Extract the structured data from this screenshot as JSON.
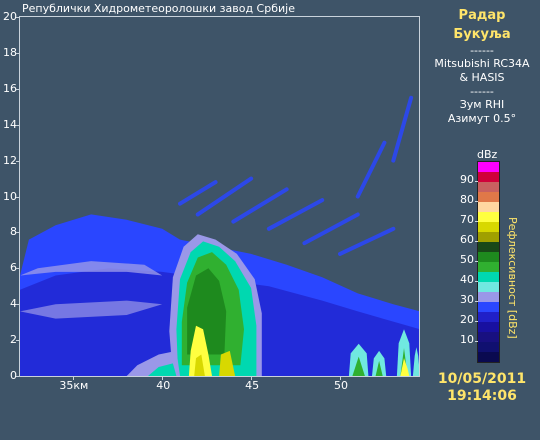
{
  "agency": "Републички Хидрометеоролошки завод Србије",
  "radar": {
    "title_line1": "Радар",
    "title_line2": "Букуља",
    "separator": "------",
    "model_line1": "Mitsubishi RC34A",
    "model_line2": "& HASIS",
    "mode": "Зум RHI",
    "azimuth": "Азимут 0.5°"
  },
  "legend": {
    "unit": "dBz",
    "title": "Рефлексивност [dBz]",
    "labels": [
      "90",
      "80",
      "70",
      "60",
      "50",
      "40",
      "30",
      "20",
      "10"
    ],
    "colors": [
      "#ff00ff",
      "#d0003a",
      "#c86060",
      "#e07848",
      "#ffd7a0",
      "#ffff40",
      "#d8d800",
      "#a0a000",
      "#184818",
      "#1e8a1e",
      "#30b030",
      "#00d8b0",
      "#70e8e0",
      "#9a98e8",
      "#2a46ff",
      "#2020c8",
      "#1810a0",
      "#181080",
      "#101070",
      "#0a0a50"
    ]
  },
  "chart_data": {
    "type": "heatmap",
    "xlabel": "",
    "ylabel": "",
    "x_ticks": [
      "35км",
      "40",
      "45",
      "50"
    ],
    "x_range_km": [
      32,
      54.5
    ],
    "y_ticks": [
      "0",
      "2",
      "4",
      "6",
      "8",
      "10",
      "12",
      "14",
      "16",
      "18",
      "20"
    ],
    "y_range": [
      0,
      20
    ],
    "colorbar_range_dbz": [
      5,
      95
    ],
    "echoes": [
      {
        "name": "stratiform",
        "x_start": 32,
        "x_end": 54.5,
        "top": 9.8,
        "base": 0,
        "dbz": 12
      },
      {
        "name": "main_core",
        "x_start": 40.8,
        "x_end": 45.5,
        "top": 8.0,
        "base": 0,
        "dbz": 45
      },
      {
        "name": "core_max",
        "x_start": 41.5,
        "x_end": 42.8,
        "top": 3.0,
        "base": 0,
        "dbz": 55
      },
      {
        "name": "secondary_cells",
        "x_start": 50.5,
        "x_end": 54.5,
        "top": 2.6,
        "base": 0,
        "dbz": 30
      }
    ]
  },
  "datetime": {
    "date": "10/05/2011",
    "time": "19:14:06"
  }
}
